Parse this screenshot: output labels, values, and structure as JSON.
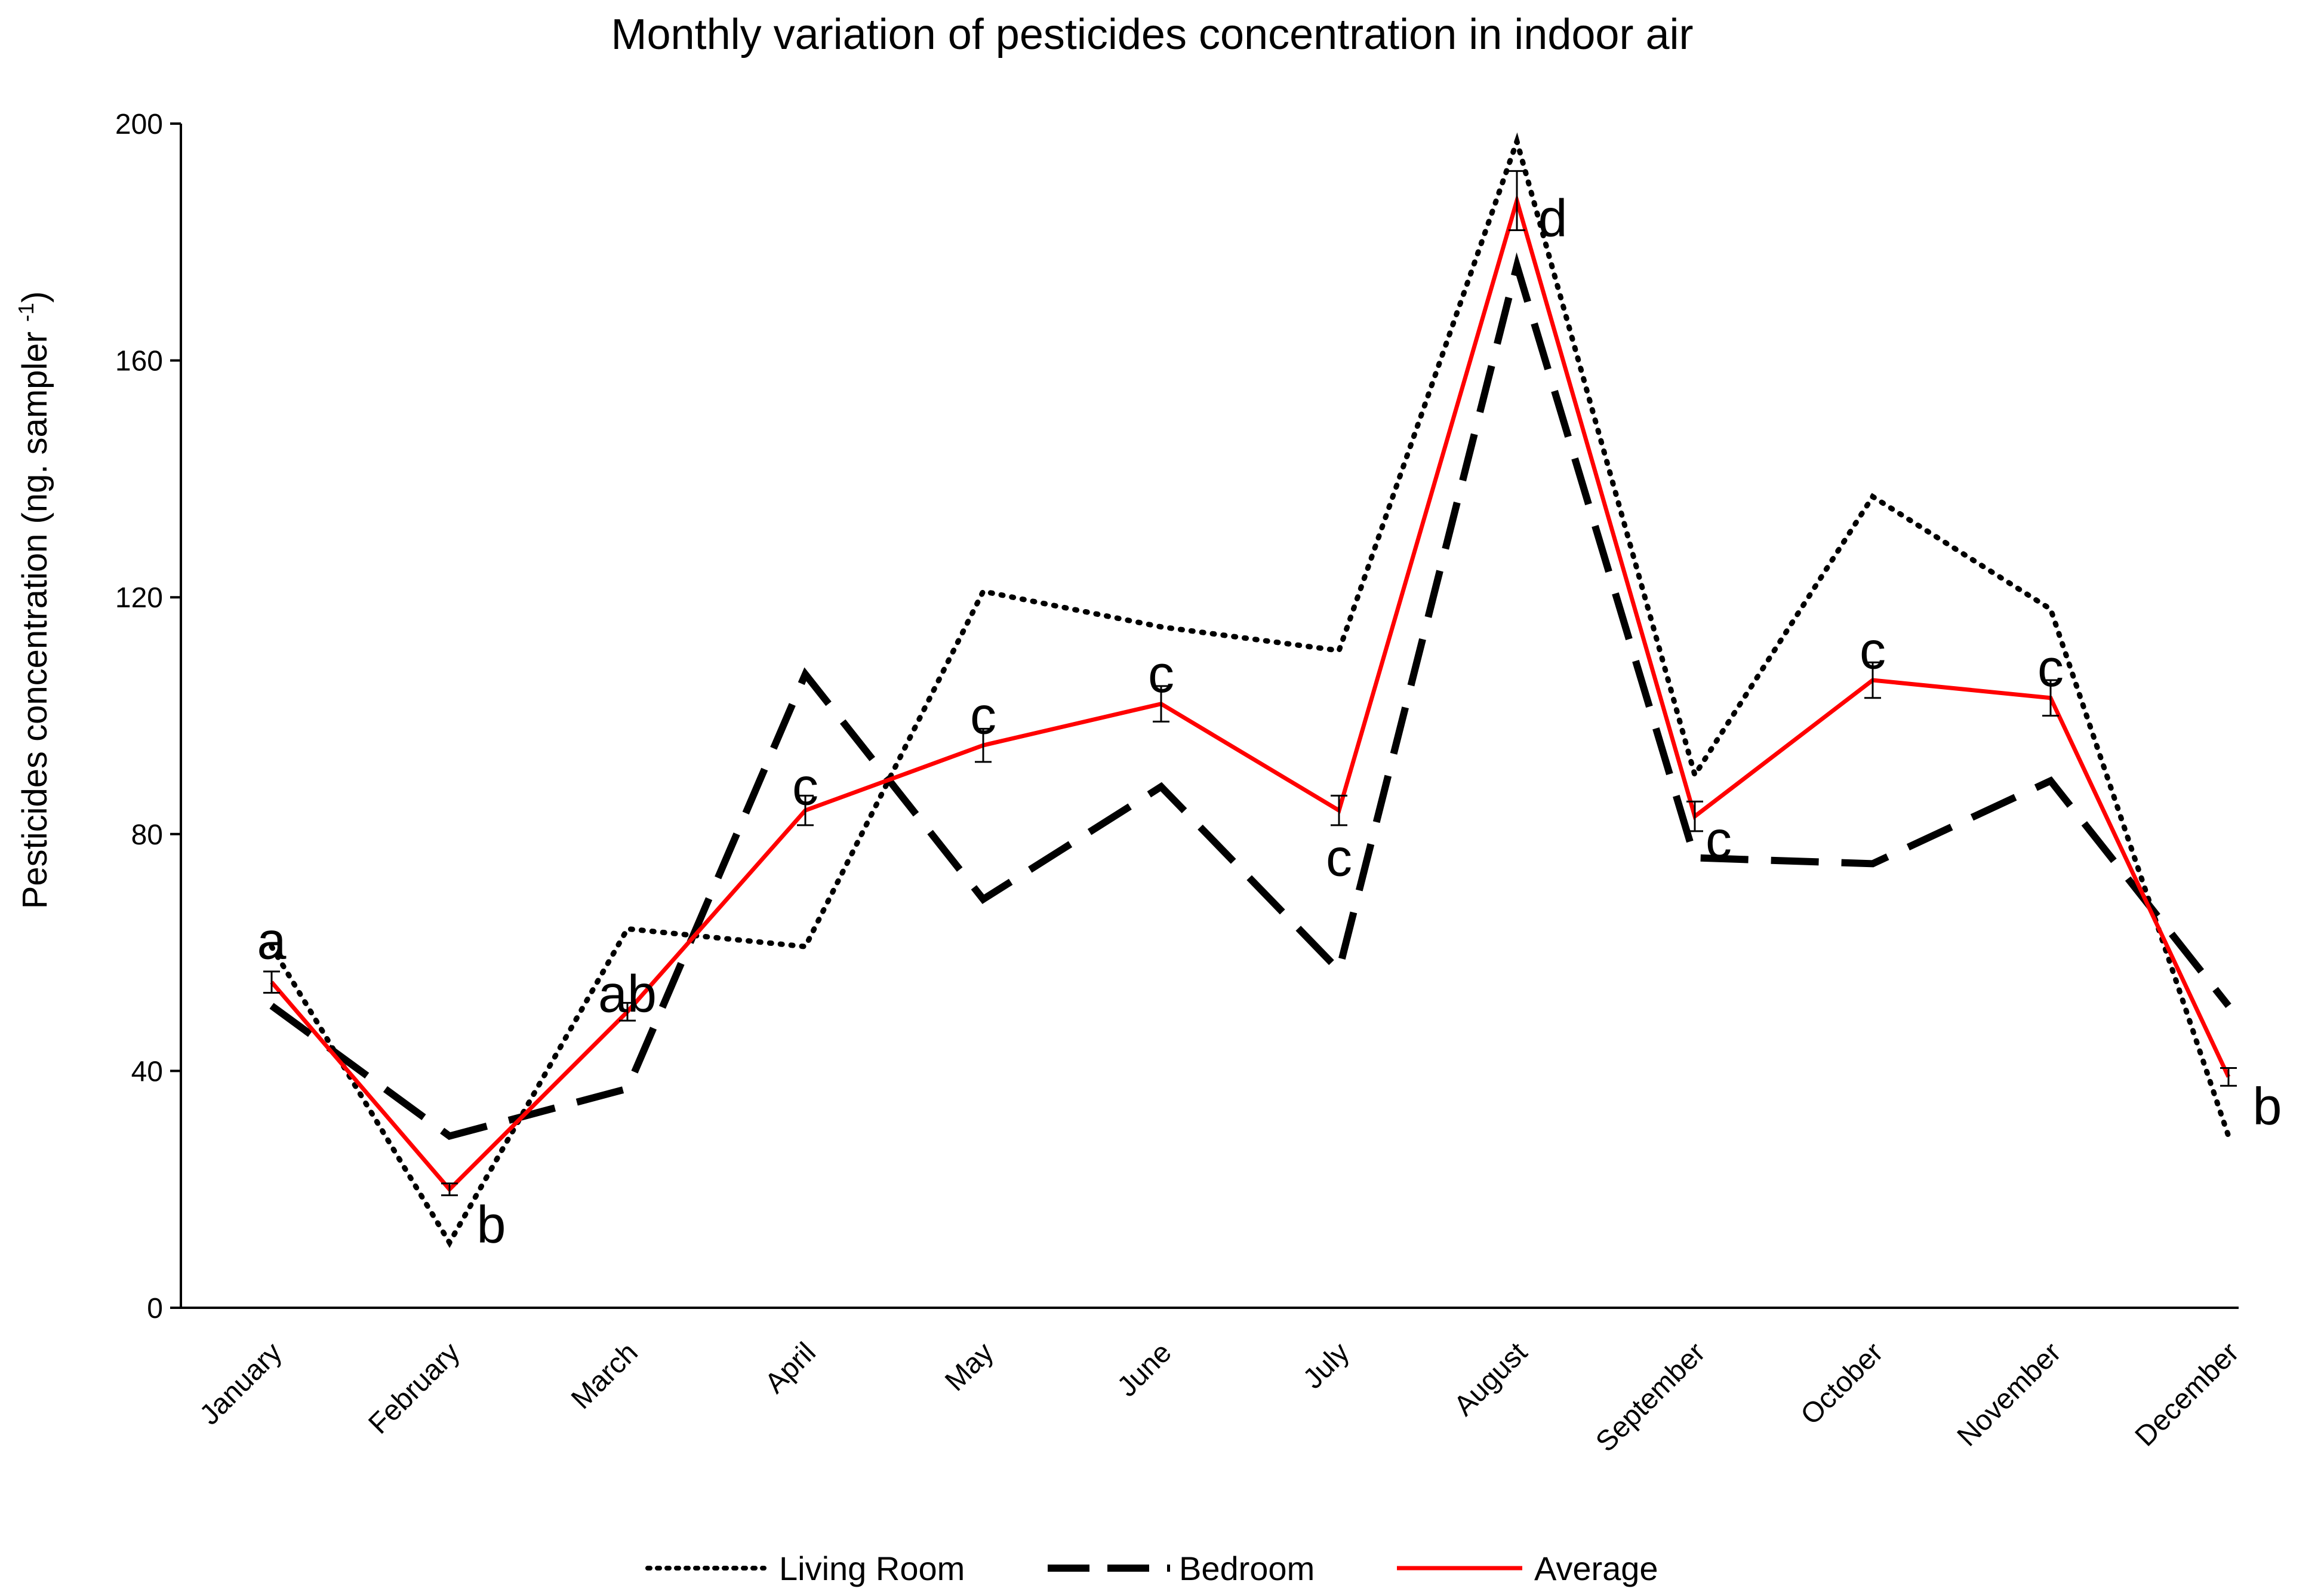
{
  "chart_data": {
    "type": "line",
    "title": "Monthly variation of pesticides concentration in indoor air",
    "ylabel_main": "Pesticides concentration (ng. sampler ",
    "ylabel_sup": "-1",
    "ylabel_close": ")",
    "xlabel": "",
    "ylim": [
      0,
      200
    ],
    "yticks": [
      "0",
      "40",
      "80",
      "120",
      "160",
      "200"
    ],
    "categories": [
      "January",
      "February",
      "March",
      "April",
      "May",
      "June",
      "July",
      "August",
      "September",
      "October",
      "November",
      "December"
    ],
    "series": [
      {
        "name": "Living Room",
        "style": "dotted",
        "color": "#000000",
        "values": [
          61,
          11,
          64,
          61,
          121,
          115,
          111,
          197,
          90,
          137,
          118,
          29
        ]
      },
      {
        "name": "Bedroom",
        "style": "dashed",
        "color": "#000000",
        "values": [
          51,
          29,
          37,
          107,
          69,
          88,
          57,
          176,
          76,
          75,
          89,
          51
        ]
      },
      {
        "name": "Average",
        "style": "solid",
        "color": "#ff0000",
        "values": [
          55,
          20,
          50,
          84,
          95,
          102,
          84,
          187,
          83,
          106,
          103,
          39
        ],
        "error": [
          1.8,
          1.0,
          1.5,
          2.5,
          2.8,
          3.0,
          2.5,
          5.0,
          2.5,
          3.0,
          3.0,
          1.5
        ]
      }
    ],
    "annotations": [
      {
        "label": "a",
        "category": "January",
        "y": 62
      },
      {
        "label": "b",
        "category": "February",
        "y": 14
      },
      {
        "label": "ab",
        "category": "March",
        "y": 53
      },
      {
        "label": "c",
        "category": "April",
        "y": 88
      },
      {
        "label": "c",
        "category": "May",
        "y": 100
      },
      {
        "label": "c",
        "category": "June",
        "y": 107
      },
      {
        "label": "c",
        "category": "July",
        "y": 76
      },
      {
        "label": "d",
        "category": "August",
        "y": 184
      },
      {
        "label": "c",
        "category": "September",
        "y": 79
      },
      {
        "label": "c",
        "category": "October",
        "y": 111
      },
      {
        "label": "c",
        "category": "November",
        "y": 108
      },
      {
        "label": "b",
        "category": "December",
        "y": 34
      }
    ],
    "legend_position": "bottom",
    "grid": false
  }
}
